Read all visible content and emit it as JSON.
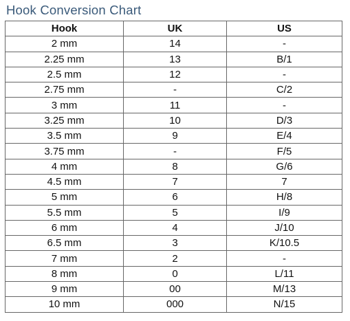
{
  "title": "Hook Conversion Chart",
  "table": {
    "headers": [
      "Hook",
      "UK",
      "US"
    ],
    "rows": [
      [
        "2 mm",
        "14",
        "-"
      ],
      [
        "2.25 mm",
        "13",
        "B/1"
      ],
      [
        "2.5 mm",
        "12",
        "-"
      ],
      [
        "2.75 mm",
        "-",
        "C/2"
      ],
      [
        "3 mm",
        "11",
        "-"
      ],
      [
        "3.25 mm",
        "10",
        "D/3"
      ],
      [
        "3.5 mm",
        "9",
        "E/4"
      ],
      [
        "3.75 mm",
        "-",
        "F/5"
      ],
      [
        "4 mm",
        "8",
        "G/6"
      ],
      [
        "4.5 mm",
        "7",
        "7"
      ],
      [
        "5 mm",
        "6",
        "H/8"
      ],
      [
        "5.5 mm",
        "5",
        "I/9"
      ],
      [
        "6 mm",
        "4",
        "J/10"
      ],
      [
        "6.5 mm",
        "3",
        "K/10.5"
      ],
      [
        "7 mm",
        "2",
        "-"
      ],
      [
        "8 mm",
        "0",
        "L/11"
      ],
      [
        "9 mm",
        "00",
        "M/13"
      ],
      [
        "10 mm",
        "000",
        "N/15"
      ]
    ]
  }
}
